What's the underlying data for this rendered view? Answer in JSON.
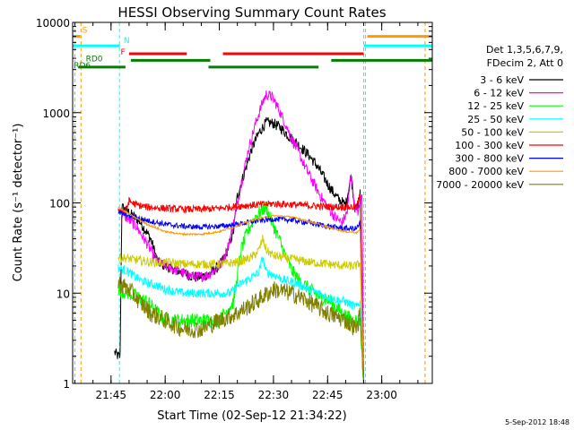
{
  "chart_data": {
    "type": "line",
    "title": "HESSI Observing Summary Count Rates",
    "xlabel": "Start Time (02-Sep-12 21:34:22)",
    "ylabel": "Count Rate (s⁻¹ detector⁻¹)",
    "x_start": "21:34:22",
    "x_end": "23:14:00",
    "x_ticks": [
      "21:45",
      "22:00",
      "22:15",
      "22:30",
      "22:45",
      "23:00"
    ],
    "y_scale": "log",
    "y_range": [
      1,
      10000
    ],
    "y_ticks": [
      "1",
      "10",
      "100",
      "1000",
      "10000"
    ],
    "legend_header": [
      "Det 1,3,5,6,7,9,",
      "FDecim 2, Att 0"
    ],
    "legend_position": "right",
    "footer_date": "5-Sep-2012 18:48",
    "series": [
      {
        "name": "3 - 6 keV",
        "color": "#000000",
        "noise": 0.06,
        "points": [
          [
            "21:46:00",
            2.2
          ],
          [
            "21:47:00",
            2.0
          ],
          [
            "21:47:30",
            2.0
          ],
          [
            "21:48:00",
            90
          ],
          [
            "21:50:00",
            78
          ],
          [
            "21:53:00",
            62
          ],
          [
            "21:56:00",
            40
          ],
          [
            "21:58:00",
            22
          ],
          [
            "22:00:00",
            20
          ],
          [
            "22:03:00",
            18
          ],
          [
            "22:06:00",
            16
          ],
          [
            "22:09:00",
            15
          ],
          [
            "22:12:00",
            16
          ],
          [
            "22:15:00",
            20
          ],
          [
            "22:17:00",
            28
          ],
          [
            "22:19:00",
            50
          ],
          [
            "22:20:00",
            120
          ],
          [
            "22:22:00",
            220
          ],
          [
            "22:24:00",
            400
          ],
          [
            "22:26:00",
            600
          ],
          [
            "22:28:00",
            780
          ],
          [
            "22:30:00",
            760
          ],
          [
            "22:32:00",
            680
          ],
          [
            "22:34:00",
            560
          ],
          [
            "22:36:00",
            480
          ],
          [
            "22:38:00",
            400
          ],
          [
            "22:40:00",
            330
          ],
          [
            "22:42:00",
            260
          ],
          [
            "22:44:00",
            190
          ],
          [
            "22:46:00",
            140
          ],
          [
            "22:48:00",
            110
          ],
          [
            "22:50:00",
            95
          ],
          [
            "22:51:30",
            200
          ],
          [
            "22:52:30",
            90
          ],
          [
            "22:53:00",
            80
          ],
          [
            "22:54:00",
            130
          ],
          [
            "22:55:00",
            1
          ]
        ]
      },
      {
        "name": "6 - 12 keV",
        "color": "#ff00ff",
        "noise": 0.06,
        "points": [
          [
            "21:47:30",
            85
          ],
          [
            "21:49:00",
            70
          ],
          [
            "21:52:00",
            55
          ],
          [
            "21:55:00",
            35
          ],
          [
            "21:58:00",
            22
          ],
          [
            "22:00:00",
            20
          ],
          [
            "22:03:00",
            18
          ],
          [
            "22:06:00",
            16
          ],
          [
            "22:09:00",
            15
          ],
          [
            "22:12:00",
            16
          ],
          [
            "22:15:00",
            20
          ],
          [
            "22:17:00",
            28
          ],
          [
            "22:19:00",
            60
          ],
          [
            "22:21:00",
            160
          ],
          [
            "22:23:00",
            380
          ],
          [
            "22:25:00",
            750
          ],
          [
            "22:27:00",
            1300
          ],
          [
            "22:28:00",
            1600
          ],
          [
            "22:29:30",
            1500
          ],
          [
            "22:31:00",
            1200
          ],
          [
            "22:33:00",
            800
          ],
          [
            "22:35:00",
            520
          ],
          [
            "22:37:00",
            360
          ],
          [
            "22:39:00",
            240
          ],
          [
            "22:41:00",
            170
          ],
          [
            "22:43:00",
            120
          ],
          [
            "22:45:00",
            90
          ],
          [
            "22:47:00",
            70
          ],
          [
            "22:49:00",
            60
          ],
          [
            "22:50:30",
            80
          ],
          [
            "22:51:30",
            220
          ],
          [
            "22:52:30",
            90
          ],
          [
            "22:53:30",
            80
          ],
          [
            "22:54:30",
            120
          ],
          [
            "22:55:00",
            1
          ]
        ]
      },
      {
        "name": "12 - 25 keV",
        "color": "#00ff00",
        "noise": 0.08,
        "points": [
          [
            "21:47:00",
            11
          ],
          [
            "21:50:00",
            10
          ],
          [
            "21:55:00",
            8
          ],
          [
            "22:00:00",
            5
          ],
          [
            "22:05:00",
            5
          ],
          [
            "22:10:00",
            5
          ],
          [
            "22:15:00",
            5
          ],
          [
            "22:19:00",
            8
          ],
          [
            "22:21:00",
            30
          ],
          [
            "22:23:00",
            50
          ],
          [
            "22:25:00",
            70
          ],
          [
            "22:27:00",
            85
          ],
          [
            "22:28:00",
            90
          ],
          [
            "22:29:00",
            70
          ],
          [
            "22:31:00",
            45
          ],
          [
            "22:33:00",
            28
          ],
          [
            "22:35:00",
            18
          ],
          [
            "22:37:00",
            14
          ],
          [
            "22:40:00",
            11
          ],
          [
            "22:43:00",
            9
          ],
          [
            "22:46:00",
            8
          ],
          [
            "22:49:00",
            6
          ],
          [
            "22:52:00",
            5
          ],
          [
            "22:54:00",
            5
          ],
          [
            "22:55:00",
            1
          ]
        ]
      },
      {
        "name": "25 - 50 keV",
        "color": "#00ffff",
        "noise": 0.05,
        "points": [
          [
            "21:47:00",
            19
          ],
          [
            "21:49:00",
            18
          ],
          [
            "21:51:00",
            16
          ],
          [
            "21:53:00",
            14
          ],
          [
            "21:55:00",
            13
          ],
          [
            "21:58:00",
            12
          ],
          [
            "22:00:00",
            11
          ],
          [
            "22:05:00",
            10
          ],
          [
            "22:10:00",
            10
          ],
          [
            "22:15:00",
            10
          ],
          [
            "22:18:00",
            10
          ],
          [
            "22:20:00",
            12
          ],
          [
            "22:24:00",
            15
          ],
          [
            "22:26:00",
            17
          ],
          [
            "22:27:00",
            25
          ],
          [
            "22:28:00",
            17
          ],
          [
            "22:30:00",
            16
          ],
          [
            "22:33:00",
            14
          ],
          [
            "22:36:00",
            13
          ],
          [
            "22:40:00",
            11
          ],
          [
            "22:45:00",
            9
          ],
          [
            "22:50:00",
            8
          ],
          [
            "22:53:00",
            7
          ],
          [
            "22:54:00",
            8
          ],
          [
            "22:55:00",
            1
          ]
        ]
      },
      {
        "name": "50 - 100 keV",
        "color": "#cccc00",
        "noise": 0.05,
        "points": [
          [
            "21:47:00",
            25
          ],
          [
            "21:50:00",
            24
          ],
          [
            "21:53:00",
            23
          ],
          [
            "21:56:00",
            22
          ],
          [
            "22:00:00",
            22
          ],
          [
            "22:05:00",
            21
          ],
          [
            "22:10:00",
            21
          ],
          [
            "22:15:00",
            21
          ],
          [
            "22:20:00",
            22
          ],
          [
            "22:24:00",
            25
          ],
          [
            "22:26:00",
            30
          ],
          [
            "22:27:00",
            40
          ],
          [
            "22:28:00",
            30
          ],
          [
            "22:30:00",
            26
          ],
          [
            "22:35:00",
            24
          ],
          [
            "22:40:00",
            22
          ],
          [
            "22:45:00",
            21
          ],
          [
            "22:50:00",
            20
          ],
          [
            "22:53:00",
            20
          ],
          [
            "22:54:00",
            22
          ],
          [
            "22:55:00",
            1
          ]
        ]
      },
      {
        "name": "100 - 300 keV",
        "color": "#ff0000",
        "noise": 0.04,
        "points": [
          [
            "21:47:00",
            85
          ],
          [
            "21:49:00",
            80
          ],
          [
            "21:50:00",
            105
          ],
          [
            "21:52:00",
            95
          ],
          [
            "21:55:00",
            90
          ],
          [
            "22:00:00",
            87
          ],
          [
            "22:05:00",
            85
          ],
          [
            "22:10:00",
            85
          ],
          [
            "22:15:00",
            87
          ],
          [
            "22:18:00",
            90
          ],
          [
            "22:20:00",
            92
          ],
          [
            "22:25:00",
            95
          ],
          [
            "22:30:00",
            98
          ],
          [
            "22:35:00",
            96
          ],
          [
            "22:40:00",
            93
          ],
          [
            "22:45:00",
            91
          ],
          [
            "22:50:00",
            90
          ],
          [
            "22:53:00",
            90
          ],
          [
            "22:54:00",
            120
          ],
          [
            "22:55:00",
            1
          ]
        ]
      },
      {
        "name": "300 - 800 keV",
        "color": "#0000ff",
        "noise": 0.03,
        "points": [
          [
            "21:47:00",
            78
          ],
          [
            "21:50:00",
            72
          ],
          [
            "21:55:00",
            64
          ],
          [
            "22:00:00",
            58
          ],
          [
            "22:05:00",
            55
          ],
          [
            "22:10:00",
            54
          ],
          [
            "22:15:00",
            55
          ],
          [
            "22:20:00",
            58
          ],
          [
            "22:25:00",
            63
          ],
          [
            "22:30:00",
            66
          ],
          [
            "22:35:00",
            65
          ],
          [
            "22:40:00",
            60
          ],
          [
            "22:45:00",
            55
          ],
          [
            "22:50:00",
            52
          ],
          [
            "22:53:00",
            52
          ],
          [
            "22:54:00",
            60
          ],
          [
            "22:55:00",
            1
          ]
        ]
      },
      {
        "name": "800 - 7000 keV",
        "color": "#ff9900",
        "noise": 0.01,
        "points": [
          [
            "21:47:00",
            90
          ],
          [
            "21:50:00",
            75
          ],
          [
            "21:55:00",
            58
          ],
          [
            "22:00:00",
            48
          ],
          [
            "22:05:00",
            45
          ],
          [
            "22:10:00",
            45
          ],
          [
            "22:15:00",
            48
          ],
          [
            "22:20:00",
            56
          ],
          [
            "22:25:00",
            66
          ],
          [
            "22:30:00",
            72
          ],
          [
            "22:35:00",
            70
          ],
          [
            "22:40:00",
            62
          ],
          [
            "22:45:00",
            54
          ],
          [
            "22:50:00",
            48
          ],
          [
            "22:53:00",
            47
          ],
          [
            "22:54:00",
            50
          ],
          [
            "22:55:00",
            1
          ]
        ]
      },
      {
        "name": "7000 - 20000 keV",
        "color": "#808000",
        "noise": 0.1,
        "points": [
          [
            "21:47:00",
            13
          ],
          [
            "21:50:00",
            11
          ],
          [
            "21:53:00",
            8
          ],
          [
            "21:56:00",
            6
          ],
          [
            "22:00:00",
            5
          ],
          [
            "22:05:00",
            4
          ],
          [
            "22:10:00",
            4
          ],
          [
            "22:15:00",
            5
          ],
          [
            "22:20:00",
            6
          ],
          [
            "22:25:00",
            8
          ],
          [
            "22:30:00",
            11
          ],
          [
            "22:35:00",
            10
          ],
          [
            "22:40:00",
            8
          ],
          [
            "22:45:00",
            6
          ],
          [
            "22:50:00",
            5
          ],
          [
            "22:53:00",
            4
          ],
          [
            "22:54:00",
            6
          ],
          [
            "22:55:00",
            1
          ]
        ]
      }
    ],
    "flag_labels": [
      "S",
      "N",
      "F",
      "RD0",
      "RD6"
    ],
    "flag_bars": [
      {
        "label": "S",
        "color": "#ff9900",
        "y": 7000,
        "segments": [
          [
            "21:34:22",
            "21:36:30"
          ],
          [
            "22:56:00",
            "23:14:00"
          ]
        ]
      },
      {
        "label": "N",
        "color": "#00ffff",
        "y": 5500,
        "segments": [
          [
            "21:34:22",
            "21:47:30"
          ],
          [
            "22:55:00",
            "23:14:00"
          ]
        ]
      },
      {
        "label": "F",
        "color": "#ff0000",
        "y": 4500,
        "segments": [
          [
            "21:50:00",
            "22:06:00"
          ],
          [
            "22:16:00",
            "22:55:00"
          ]
        ]
      },
      {
        "label": "RD0",
        "color": "#008000",
        "y": 3800,
        "segments": [
          [
            "21:50:30",
            "22:12:30"
          ],
          [
            "22:46:00",
            "23:14:00"
          ]
        ]
      },
      {
        "label": "RD6",
        "color": "#008000",
        "y": 3200,
        "segments": [
          [
            "21:36:00",
            "21:49:00"
          ],
          [
            "22:12:00",
            "22:42:30"
          ]
        ]
      }
    ],
    "vertical_markers": [
      {
        "time": "21:35:00",
        "color": "#00ffff"
      },
      {
        "time": "21:36:40",
        "color": "#ff9900"
      },
      {
        "time": "21:47:20",
        "color": "#00ffff"
      },
      {
        "time": "22:55:00",
        "color": "#00ffff"
      },
      {
        "time": "22:55:30",
        "color": "#00ffff"
      },
      {
        "time": "23:12:00",
        "color": "#ff9900"
      }
    ]
  }
}
